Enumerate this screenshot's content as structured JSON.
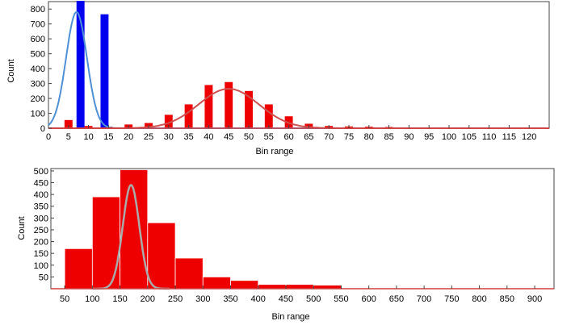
{
  "chart_data": [
    {
      "type": "bar",
      "xlabel": "Bin range",
      "ylabel": "Count",
      "xlim": [
        0,
        125
      ],
      "ylim": [
        0,
        850
      ],
      "x_ticks": [
        0,
        5,
        10,
        15,
        20,
        25,
        30,
        35,
        40,
        45,
        50,
        55,
        60,
        65,
        70,
        75,
        80,
        85,
        90,
        95,
        100,
        105,
        110,
        115,
        120
      ],
      "y_ticks": [
        0,
        100,
        200,
        300,
        400,
        500,
        600,
        700,
        800
      ],
      "bar_width": 2,
      "grid": false,
      "series": [
        {
          "color": "#ee0000",
          "x": [
            5,
            10,
            15,
            20,
            25,
            30,
            35,
            40,
            45,
            50,
            55,
            60,
            65,
            70,
            75,
            80,
            85
          ],
          "values": [
            55,
            15,
            10,
            25,
            35,
            90,
            160,
            290,
            310,
            250,
            160,
            80,
            30,
            15,
            12,
            10,
            8
          ]
        },
        {
          "color": "#0000ee",
          "x": [
            8,
            14
          ],
          "values": [
            855,
            765
          ]
        }
      ],
      "curves": [
        {
          "color": "#4f8fd6",
          "type": "gaussian",
          "mu": 7,
          "sigma": 2.6,
          "peak": 780
        },
        {
          "color": "#d05050",
          "type": "gaussian",
          "mu": 45,
          "sigma": 7.5,
          "peak": 265
        }
      ]
    },
    {
      "type": "bar",
      "xlabel": "Bin range",
      "ylabel": "Count",
      "xlim": [
        25,
        935
      ],
      "ylim": [
        0,
        510
      ],
      "x_ticks": [
        50,
        100,
        150,
        200,
        250,
        300,
        350,
        400,
        450,
        500,
        550,
        600,
        650,
        700,
        750,
        800,
        850,
        900
      ],
      "y_ticks": [
        50,
        100,
        150,
        200,
        250,
        300,
        350,
        400,
        450,
        500
      ],
      "grid": false,
      "series": [
        {
          "color": "#ee0000",
          "bin_edges": [
            50,
            100,
            150,
            200,
            250,
            300,
            350,
            400,
            450,
            500,
            550
          ],
          "values": [
            170,
            390,
            505,
            280,
            130,
            50,
            35,
            18,
            18,
            15
          ]
        }
      ],
      "curves": [
        {
          "color": "#aaaaaa",
          "type": "gaussian",
          "mu": 170,
          "sigma": 15,
          "peak": 440
        }
      ]
    }
  ]
}
